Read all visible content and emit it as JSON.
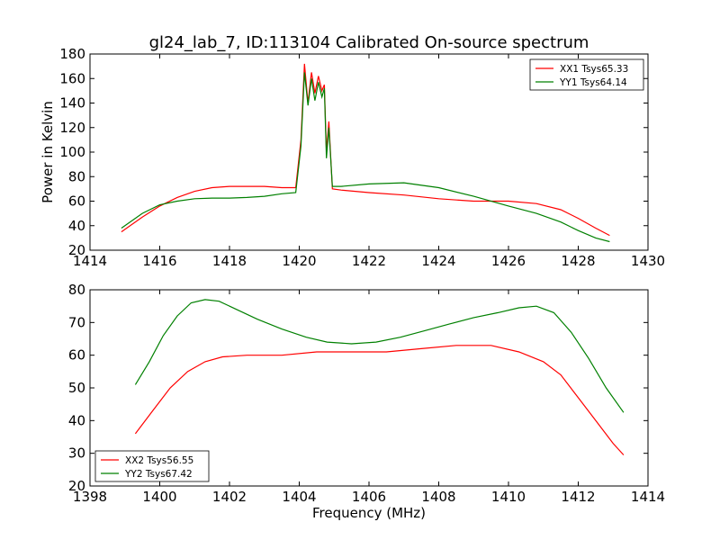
{
  "figure_title": "gl24_lab_7, ID:113104 Calibrated On-source spectrum",
  "chart_data": [
    {
      "type": "line",
      "title": "gl24_lab_7, ID:113104 Calibrated On-source spectrum",
      "xlabel": "",
      "ylabel": "Power in Kelvin",
      "xlim": [
        1414,
        1430
      ],
      "ylim": [
        20,
        180
      ],
      "xticks": [
        "1414",
        "1416",
        "1418",
        "1420",
        "1422",
        "1424",
        "1426",
        "1428",
        "1430"
      ],
      "yticks": [
        "20",
        "40",
        "60",
        "80",
        "100",
        "120",
        "140",
        "160",
        "180"
      ],
      "grid": false,
      "legend_position": "top-right",
      "series": [
        {
          "name": "XX1 Tsys65.33",
          "color": "#ff0000",
          "x": [
            1414.9,
            1415.5,
            1416,
            1416.5,
            1417,
            1417.5,
            1418,
            1418.5,
            1419,
            1419.5,
            1419.9,
            1420.05,
            1420.15,
            1420.25,
            1420.35,
            1420.45,
            1420.55,
            1420.65,
            1420.72,
            1420.78,
            1420.85,
            1420.95,
            1421.2,
            1422,
            1423,
            1424,
            1425,
            1426,
            1426.8,
            1427.5,
            1428,
            1428.5,
            1428.9
          ],
          "y": [
            35,
            47,
            56,
            63,
            68,
            71,
            72,
            72,
            72,
            71,
            71,
            110,
            172,
            140,
            165,
            148,
            162,
            150,
            155,
            100,
            125,
            70,
            69,
            67,
            65,
            62,
            60,
            60,
            58,
            53,
            46,
            38,
            32
          ]
        },
        {
          "name": "YY1 Tsys64.14",
          "color": "#008000",
          "x": [
            1414.9,
            1415.5,
            1416,
            1416.5,
            1417,
            1417.5,
            1418,
            1418.5,
            1419,
            1419.5,
            1419.9,
            1420.05,
            1420.15,
            1420.25,
            1420.35,
            1420.45,
            1420.55,
            1420.65,
            1420.72,
            1420.78,
            1420.85,
            1420.95,
            1421.2,
            1422,
            1423,
            1424,
            1425,
            1426,
            1426.8,
            1427.5,
            1428,
            1428.5,
            1428.9
          ],
          "y": [
            38,
            50,
            57,
            60,
            62,
            62.5,
            62.5,
            63,
            64,
            66,
            67,
            105,
            165,
            138,
            160,
            142,
            157,
            145,
            152,
            95,
            120,
            72,
            72,
            74,
            75,
            71,
            64,
            56,
            50,
            43,
            36,
            30,
            27
          ]
        }
      ]
    },
    {
      "type": "line",
      "title": "",
      "xlabel": "Frequency (MHz)",
      "ylabel": "",
      "xlim": [
        1398,
        1414
      ],
      "ylim": [
        20,
        80
      ],
      "xticks": [
        "1398",
        "1400",
        "1402",
        "1404",
        "1406",
        "1408",
        "1410",
        "1412",
        "1414"
      ],
      "yticks": [
        "20",
        "30",
        "40",
        "50",
        "60",
        "70",
        "80"
      ],
      "grid": false,
      "legend_position": "bottom-left",
      "series": [
        {
          "name": "XX2 Tsys56.55",
          "color": "#ff0000",
          "x": [
            1399.3,
            1399.8,
            1400.3,
            1400.8,
            1401.3,
            1401.8,
            1402.5,
            1403.5,
            1404.5,
            1405.5,
            1406.5,
            1407.5,
            1408.5,
            1409.5,
            1410.3,
            1411,
            1411.5,
            1412,
            1412.5,
            1413,
            1413.3
          ],
          "y": [
            36,
            43,
            50,
            55,
            58,
            59.5,
            60,
            60,
            61,
            61,
            61,
            62,
            63,
            63,
            61,
            58,
            54,
            47,
            40,
            33,
            29.5
          ]
        },
        {
          "name": "YY2 Tsys67.42",
          "color": "#008000",
          "x": [
            1399.3,
            1399.7,
            1400.1,
            1400.5,
            1400.9,
            1401.3,
            1401.7,
            1402.2,
            1402.8,
            1403.5,
            1404.2,
            1404.8,
            1405.5,
            1406.2,
            1406.9,
            1407.6,
            1408.3,
            1409,
            1409.7,
            1410.3,
            1410.8,
            1411.3,
            1411.8,
            1412.3,
            1412.8,
            1413.3
          ],
          "y": [
            51,
            58,
            66,
            72,
            76,
            77,
            76.5,
            74,
            71,
            68,
            65.5,
            64,
            63.5,
            64,
            65.5,
            67.5,
            69.5,
            71.5,
            73,
            74.5,
            75,
            73,
            67,
            59,
            50,
            42.5
          ]
        }
      ]
    }
  ]
}
